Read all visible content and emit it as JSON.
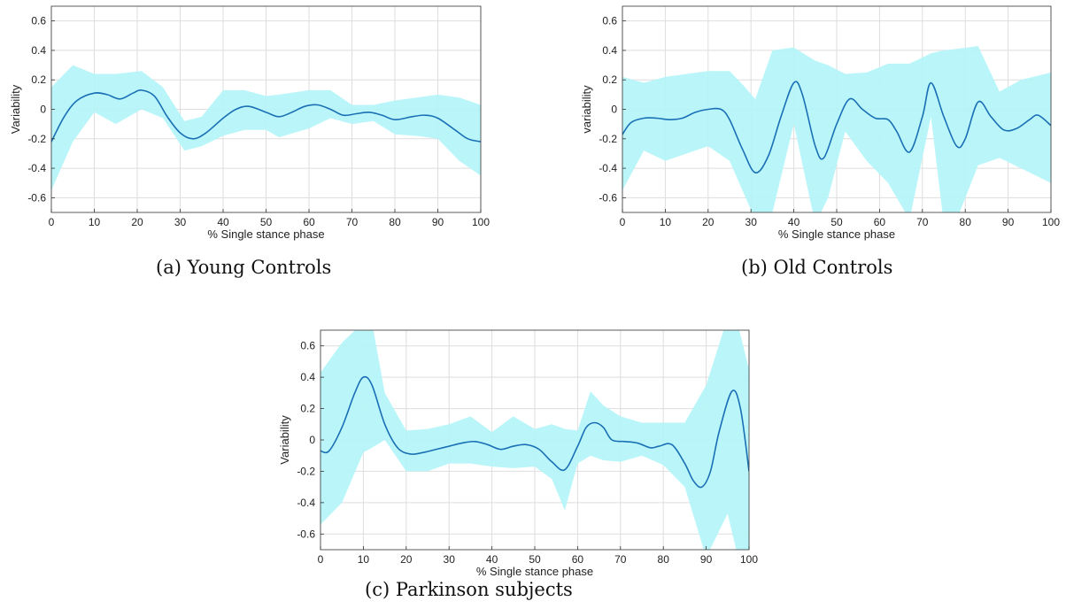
{
  "chart_data": [
    {
      "type": "line",
      "caption": "(a)  Young Controls",
      "xlabel": "% Single stance phase",
      "ylabel": "Variability",
      "xlim": [
        0,
        100
      ],
      "ylim": [
        -0.7,
        0.7
      ],
      "xticks": [
        0,
        10,
        20,
        30,
        40,
        50,
        60,
        70,
        80,
        90,
        100
      ],
      "yticks": [
        -0.6,
        -0.4,
        -0.2,
        0,
        0.2,
        0.4,
        0.6
      ],
      "ytick_labels": [
        "-0.6",
        "-0.4",
        "-0.2",
        "0",
        "0.2",
        "0.4",
        "0.6"
      ],
      "grid": true,
      "colors": {
        "line": "#1a6fb5",
        "band": "#b3f5f8"
      },
      "series": [
        {
          "x": [
            0,
            3,
            6,
            10,
            13,
            16,
            19,
            21,
            24,
            27,
            30,
            33,
            36,
            40,
            43,
            46,
            50,
            53,
            56,
            59,
            62,
            65,
            68,
            71,
            74,
            77,
            80,
            84,
            87,
            90,
            94,
            97,
            100
          ],
          "values": [
            -0.22,
            -0.05,
            0.06,
            0.11,
            0.1,
            0.07,
            0.11,
            0.13,
            0.09,
            -0.05,
            -0.16,
            -0.2,
            -0.16,
            -0.06,
            0.0,
            0.02,
            -0.02,
            -0.05,
            -0.02,
            0.02,
            0.03,
            0.0,
            -0.04,
            -0.03,
            -0.02,
            -0.04,
            -0.07,
            -0.05,
            -0.04,
            -0.06,
            -0.14,
            -0.2,
            -0.22
          ]
        }
      ],
      "band": {
        "x": [
          0,
          5,
          10,
          15,
          21,
          26,
          31,
          35,
          40,
          45,
          50,
          53,
          60,
          65,
          70,
          75,
          80,
          85,
          90,
          95,
          100
        ],
        "upper": [
          0.15,
          0.3,
          0.24,
          0.24,
          0.26,
          0.15,
          -0.08,
          -0.05,
          0.13,
          0.13,
          0.09,
          0.1,
          0.13,
          0.13,
          0.03,
          0.03,
          0.06,
          0.08,
          0.1,
          0.08,
          0.03
        ],
        "lower": [
          -0.55,
          -0.22,
          -0.02,
          -0.1,
          0.0,
          -0.06,
          -0.28,
          -0.25,
          -0.18,
          -0.14,
          -0.14,
          -0.19,
          -0.13,
          -0.06,
          -0.1,
          -0.08,
          -0.17,
          -0.18,
          -0.2,
          -0.35,
          -0.45
        ]
      }
    },
    {
      "type": "line",
      "caption": "(b) Old Controls",
      "xlabel": "% Single stance phase",
      "ylabel": "variability",
      "xlim": [
        0,
        100
      ],
      "ylim": [
        -0.7,
        0.7
      ],
      "xticks": [
        0,
        10,
        20,
        30,
        40,
        50,
        60,
        70,
        80,
        90,
        100
      ],
      "yticks": [
        -0.6,
        -0.4,
        -0.2,
        0,
        0.2,
        0.4,
        0.6
      ],
      "ytick_labels": [
        "-0.6",
        "-0.4",
        "-0.2",
        "0",
        "0.2",
        "0.4",
        "0.6"
      ],
      "grid": true,
      "colors": {
        "line": "#1a6fb5",
        "band": "#b3f5f8"
      },
      "series": [
        {
          "x": [
            0,
            2,
            5,
            8,
            11,
            14,
            17,
            20,
            23,
            25,
            28,
            31,
            34,
            37,
            40,
            42,
            45,
            47,
            50,
            53,
            56,
            59,
            62,
            64,
            67,
            70,
            72,
            75,
            78,
            80,
            83,
            86,
            89,
            92,
            95,
            97,
            100
          ],
          "values": [
            -0.17,
            -0.09,
            -0.06,
            -0.06,
            -0.07,
            -0.06,
            -0.02,
            0.0,
            0.0,
            -0.07,
            -0.27,
            -0.43,
            -0.32,
            -0.05,
            0.18,
            0.1,
            -0.25,
            -0.33,
            -0.1,
            0.07,
            0.0,
            -0.06,
            -0.07,
            -0.15,
            -0.29,
            -0.05,
            0.18,
            -0.05,
            -0.25,
            -0.2,
            0.05,
            -0.05,
            -0.14,
            -0.13,
            -0.07,
            -0.04,
            -0.11
          ]
        }
      ],
      "band": {
        "x": [
          0,
          5,
          10,
          15,
          20,
          25,
          28,
          31,
          35,
          40,
          45,
          48,
          52,
          57,
          62,
          67,
          72,
          75,
          78,
          83,
          88,
          93,
          100
        ],
        "upper": [
          0.22,
          0.18,
          0.22,
          0.24,
          0.26,
          0.26,
          0.17,
          0.07,
          0.4,
          0.42,
          0.33,
          0.3,
          0.24,
          0.25,
          0.31,
          0.31,
          0.38,
          0.4,
          0.41,
          0.43,
          0.12,
          0.2,
          0.25
        ],
        "lower": [
          -0.55,
          -0.28,
          -0.35,
          -0.3,
          -0.25,
          -0.35,
          -0.55,
          -0.75,
          -0.7,
          -0.1,
          -0.78,
          -0.6,
          -0.15,
          -0.35,
          -0.5,
          -0.75,
          -0.05,
          -0.78,
          -0.75,
          -0.38,
          -0.33,
          -0.4,
          -0.5
        ]
      }
    },
    {
      "type": "line",
      "caption": "(c) Parkinson subjects",
      "xlabel": "% Single stance phase",
      "ylabel": "Variability",
      "xlim": [
        0,
        100
      ],
      "ylim": [
        -0.7,
        0.7
      ],
      "xticks": [
        0,
        10,
        20,
        30,
        40,
        50,
        60,
        70,
        80,
        90,
        100
      ],
      "yticks": [
        -0.6,
        -0.4,
        -0.2,
        0,
        0.2,
        0.4,
        0.6
      ],
      "ytick_labels": [
        "-0.6",
        "-0.4",
        "-0.2",
        "0",
        "0.2",
        "0.4",
        "0.6"
      ],
      "grid": true,
      "colors": {
        "line": "#1a6fb5",
        "band": "#b3f5f8"
      },
      "series": [
        {
          "x": [
            0,
            2,
            5,
            8,
            10,
            12,
            15,
            18,
            21,
            24,
            27,
            30,
            33,
            36,
            39,
            42,
            45,
            48,
            51,
            54,
            57,
            60,
            62,
            64,
            66,
            68,
            71,
            74,
            77,
            79,
            82,
            85,
            87,
            89,
            91,
            93,
            96,
            98,
            100
          ],
          "values": [
            -0.07,
            -0.07,
            0.08,
            0.3,
            0.4,
            0.35,
            0.1,
            -0.05,
            -0.09,
            -0.08,
            -0.06,
            -0.04,
            -0.02,
            -0.01,
            -0.03,
            -0.06,
            -0.04,
            -0.03,
            -0.06,
            -0.14,
            -0.19,
            -0.04,
            0.08,
            0.11,
            0.08,
            0.0,
            -0.01,
            -0.02,
            -0.05,
            -0.04,
            -0.03,
            -0.15,
            -0.26,
            -0.3,
            -0.2,
            0.05,
            0.31,
            0.2,
            -0.2
          ]
        }
      ],
      "band": {
        "x": [
          0,
          5,
          10,
          12,
          15,
          20,
          25,
          30,
          35,
          40,
          45,
          50,
          54,
          57,
          60,
          63,
          66,
          70,
          75,
          80,
          85,
          90,
          95,
          97,
          100
        ],
        "upper": [
          0.43,
          0.62,
          0.75,
          0.75,
          0.3,
          0.06,
          0.07,
          0.1,
          0.15,
          0.05,
          0.15,
          0.07,
          0.1,
          0.07,
          0.06,
          0.31,
          0.22,
          0.15,
          0.11,
          0.11,
          0.11,
          0.35,
          0.78,
          0.78,
          0.45
        ],
        "lower": [
          -0.54,
          -0.4,
          -0.08,
          -0.05,
          0.0,
          -0.2,
          -0.2,
          -0.15,
          -0.15,
          -0.17,
          -0.18,
          -0.17,
          -0.25,
          -0.45,
          -0.15,
          -0.1,
          -0.13,
          -0.14,
          -0.1,
          -0.16,
          -0.3,
          -0.75,
          -0.47,
          -0.7,
          -0.78
        ]
      }
    }
  ]
}
